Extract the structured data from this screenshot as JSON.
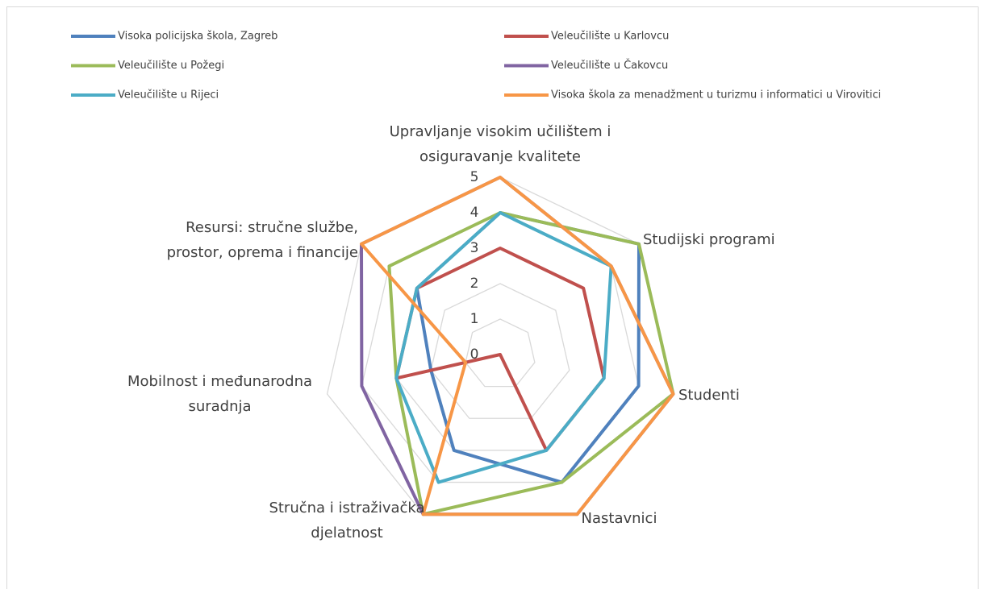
{
  "chart_data": {
    "type": "radar",
    "categories": [
      "Upravljanje visokim učilištem i osiguravanje kvalitete",
      "Studijski programi",
      "Studenti",
      "Nastavnici",
      "Stručna i istraživačka djelatnost",
      "Mobilnost i međunarodna suradnja",
      "Resursi: stručne službe, prostor, oprema i financije"
    ],
    "series": [
      {
        "name": "Visoka policijska škola, Zagreb",
        "color": "#4f81bd",
        "values": [
          4,
          5,
          4,
          4,
          3,
          2,
          3
        ]
      },
      {
        "name": "Veleučilište u Karlovcu",
        "color": "#c0504d",
        "values": [
          3,
          3,
          3,
          3,
          0,
          3,
          3
        ]
      },
      {
        "name": "Veleučilište u Požegi",
        "color": "#9bbb59",
        "values": [
          4,
          5,
          5,
          4,
          5,
          3,
          4
        ]
      },
      {
        "name": "Veleučilište u Čakovcu",
        "color": "#8064a2",
        "values": [
          5,
          4,
          5,
          5,
          5,
          4,
          5
        ]
      },
      {
        "name": "Veleučilište u Rijeci",
        "color": "#4bacc6",
        "values": [
          4,
          4,
          3,
          3,
          4,
          3,
          3
        ]
      },
      {
        "name": "Visoka škola za menadžment u turizmu i informatici u Virovitici",
        "color": "#f79646",
        "values": [
          5,
          4,
          5,
          5,
          5,
          1,
          5
        ]
      }
    ],
    "ylim": [
      0,
      5
    ],
    "yticks": [
      0,
      1,
      2,
      3,
      4,
      5
    ],
    "grid": true,
    "legend": "top"
  }
}
